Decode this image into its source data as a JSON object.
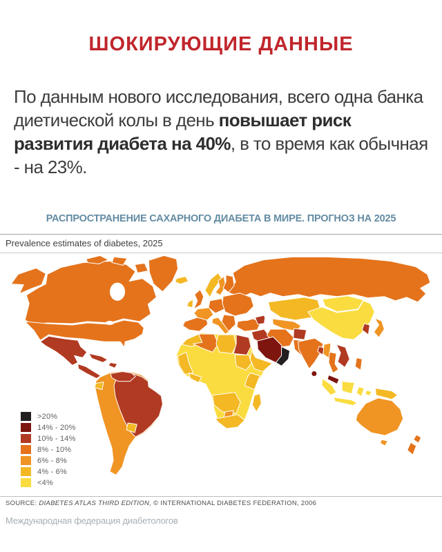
{
  "header": {
    "title": "ШОКИРУЮЩИЕ ДАННЫЕ",
    "title_color": "#c0262c"
  },
  "lead": {
    "text_before": "По данным нового исследования, всего одна банка диетической колы в день ",
    "text_bold": "повышает риск развития диабета на 40%",
    "text_after": ", в то время как обычная - на 23%."
  },
  "chart": {
    "heading": "РАСПРОСТРАНЕНИЕ САХАРНОГО ДИАБЕТА В МИРЕ. ПРОГНОЗ НА 2025",
    "heading_color": "#628ba3",
    "subtitle": "Prevalence estimates of diabetes, 2025",
    "source_prefix": "SOURCE: ",
    "source_italic": "DIABETES ATLAS THIRD EDITION,",
    "source_rest": " © INTERNATIONAL DIABETES FEDERATION, 2006"
  },
  "footer": {
    "attribution": "Международная федерация диабетологов"
  },
  "chart_data": {
    "type": "heatmap",
    "subtype": "choropleth-world-map",
    "title": "Prevalence estimates of diabetes, 2025",
    "legend_position": "bottom-left",
    "ocean_color": "#ffffff",
    "border_color": "#ffffff",
    "categories": [
      {
        "label": ">20%",
        "color": "#231f20"
      },
      {
        "label": "14% - 20%",
        "color": "#7e150f"
      },
      {
        "label": "10% - 14%",
        "color": "#b13a22"
      },
      {
        "label": "8% - 10%",
        "color": "#e4731c"
      },
      {
        "label": "6% - 8%",
        "color": "#f09423"
      },
      {
        "label": "4% - 6%",
        "color": "#f3b824"
      },
      {
        "label": "<4%",
        "color": "#fadc40"
      }
    ],
    "regions": [
      {
        "id": "alaska",
        "name": "Alaska (USA)",
        "category": "8% - 10%"
      },
      {
        "id": "canada",
        "name": "Canada",
        "category": "8% - 10%"
      },
      {
        "id": "arctic-islands",
        "name": "Canadian Arctic islands",
        "category": "8% - 10%"
      },
      {
        "id": "greenland",
        "name": "Greenland",
        "category": "8% - 10%"
      },
      {
        "id": "usa",
        "name": "United States",
        "category": "8% - 10%"
      },
      {
        "id": "mexico",
        "name": "Mexico",
        "category": "10% - 14%"
      },
      {
        "id": "central-america",
        "name": "Central America",
        "category": "10% - 14%"
      },
      {
        "id": "cuba",
        "name": "Cuba",
        "category": "10% - 14%"
      },
      {
        "id": "hispaniola",
        "name": "Caribbean",
        "category": "10% - 14%"
      },
      {
        "id": "south-america",
        "name": "Andean & Southern South America",
        "category": "6% - 8%"
      },
      {
        "id": "brazil",
        "name": "Brazil",
        "category": "10% - 14%"
      },
      {
        "id": "venezuela",
        "name": "Venezuela",
        "category": "10% - 14%"
      },
      {
        "id": "ecuador",
        "name": "Ecuador",
        "category": "4% - 6%"
      },
      {
        "id": "paraguay",
        "name": "Paraguay",
        "category": "4% - 6%"
      },
      {
        "id": "iceland",
        "name": "Iceland",
        "category": "4% - 6%"
      },
      {
        "id": "uk",
        "name": "United Kingdom",
        "category": "8% - 10%"
      },
      {
        "id": "ireland",
        "name": "Ireland",
        "category": "4% - 6%"
      },
      {
        "id": "norway",
        "name": "Norway",
        "category": "4% - 6%"
      },
      {
        "id": "sweden",
        "name": "Sweden",
        "category": "6% - 8%"
      },
      {
        "id": "finland",
        "name": "Finland",
        "category": "8% - 10%"
      },
      {
        "id": "iberia",
        "name": "Spain & Portugal",
        "category": "8% - 10%"
      },
      {
        "id": "france",
        "name": "France",
        "category": "6% - 8%"
      },
      {
        "id": "central-europe",
        "name": "Central Europe",
        "category": "8% - 10%"
      },
      {
        "id": "italy",
        "name": "Italy",
        "category": "6% - 8%"
      },
      {
        "id": "eastern-europe",
        "name": "Eastern Europe",
        "category": "8% - 10%"
      },
      {
        "id": "balkans",
        "name": "Balkans",
        "category": "8% - 10%"
      },
      {
        "id": "russia",
        "name": "Russia",
        "category": "8% - 10%"
      },
      {
        "id": "kazakhstan",
        "name": "Kazakhstan",
        "category": "4% - 6%"
      },
      {
        "id": "central-asia",
        "name": "Central Asia",
        "category": "6% - 8%"
      },
      {
        "id": "caucasus",
        "name": "Caucasus",
        "category": "10% - 14%"
      },
      {
        "id": "turkey",
        "name": "Turkey",
        "category": "8% - 10%"
      },
      {
        "id": "syria-iraq",
        "name": "Syria & Iraq",
        "category": "10% - 14%"
      },
      {
        "id": "iran",
        "name": "Iran",
        "category": "8% - 10%"
      },
      {
        "id": "afghanistan",
        "name": "Afghanistan",
        "category": "10% - 14%"
      },
      {
        "id": "pakistan",
        "name": "Pakistan",
        "category": "8% - 10%"
      },
      {
        "id": "saudi-arabia",
        "name": "Saudi Arabia",
        "category": "14% - 20%"
      },
      {
        "id": "gulf-states",
        "name": "Gulf States (UAE, Oman)",
        "category": ">20%"
      },
      {
        "id": "india",
        "name": "India",
        "category": "8% - 10%"
      },
      {
        "id": "bangladesh",
        "name": "Bangladesh",
        "category": "10% - 14%"
      },
      {
        "id": "sri-lanka",
        "name": "Sri Lanka",
        "category": "14% - 20%"
      },
      {
        "id": "mongolia",
        "name": "Mongolia",
        "category": "<4%"
      },
      {
        "id": "china",
        "name": "China",
        "category": "<4%"
      },
      {
        "id": "korea",
        "name": "Korea",
        "category": "10% - 14%"
      },
      {
        "id": "japan",
        "name": "Japan",
        "category": "6% - 8%"
      },
      {
        "id": "myanmar",
        "name": "Myanmar",
        "category": "6% - 8%"
      },
      {
        "id": "thailand",
        "name": "Thailand",
        "category": "8% - 10%"
      },
      {
        "id": "indochina",
        "name": "Vietnam, Laos & Cambodia",
        "category": "10% - 14%"
      },
      {
        "id": "malaysia",
        "name": "Malaysia",
        "category": "14% - 20%"
      },
      {
        "id": "sumatra",
        "name": "Indonesia (Sumatra)",
        "category": "<4%"
      },
      {
        "id": "borneo",
        "name": "Indonesia (Borneo)",
        "category": "<4%"
      },
      {
        "id": "java",
        "name": "Indonesia (Java)",
        "category": "<4%"
      },
      {
        "id": "sulawesi",
        "name": "Indonesia (Sulawesi)",
        "category": "<4%"
      },
      {
        "id": "moluccas",
        "name": "Indonesia (Moluccas)",
        "category": "<4%"
      },
      {
        "id": "philippines",
        "name": "Philippines",
        "category": "8% - 10%"
      },
      {
        "id": "new-guinea",
        "name": "Papua New Guinea",
        "category": "4% - 6%"
      },
      {
        "id": "australia",
        "name": "Australia",
        "category": "6% - 8%"
      },
      {
        "id": "tasmania",
        "name": "Tasmania",
        "category": "6% - 8%"
      },
      {
        "id": "new-zealand",
        "name": "New Zealand",
        "category": "8% - 10%"
      },
      {
        "id": "africa-base",
        "name": "Sub-Saharan Africa",
        "category": "<4%"
      },
      {
        "id": "morocco",
        "name": "Morocco",
        "category": "4% - 6%"
      },
      {
        "id": "algeria",
        "name": "Algeria",
        "category": "8% - 10%"
      },
      {
        "id": "libya",
        "name": "Libya",
        "category": "4% - 6%"
      },
      {
        "id": "egypt",
        "name": "Egypt",
        "category": "10% - 14%"
      },
      {
        "id": "sudan",
        "name": "Sudan",
        "category": "4% - 6%"
      },
      {
        "id": "horn-of-africa",
        "name": "Horn of Africa",
        "category": "4% - 6%"
      },
      {
        "id": "west-africa",
        "name": "West Africa",
        "category": "4% - 6%"
      },
      {
        "id": "gulf-of-guinea",
        "name": "Gulf of Guinea coast",
        "category": "4% - 6%"
      },
      {
        "id": "east-africa",
        "name": "East Africa",
        "category": "4% - 6%"
      },
      {
        "id": "angola-zambia",
        "name": "Angola & Zambia",
        "category": "4% - 6%"
      },
      {
        "id": "botswana",
        "name": "Botswana",
        "category": "6% - 8%"
      },
      {
        "id": "south-africa",
        "name": "South Africa",
        "category": "4% - 6%"
      },
      {
        "id": "madagascar",
        "name": "Madagascar",
        "category": "4% - 6%"
      }
    ]
  }
}
